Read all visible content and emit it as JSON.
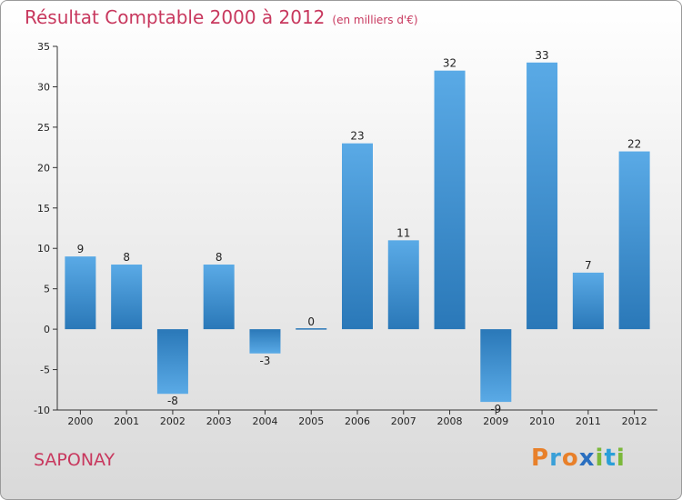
{
  "header": {
    "title": "Résultat Comptable 2000 à 2012",
    "unit": "(en milliers d'€)"
  },
  "commune": "SAPONAY",
  "logo": {
    "text": "Proxiti",
    "letters": [
      "P",
      "r",
      "o",
      "x",
      "i",
      "t",
      "i"
    ],
    "colors": [
      "#e8802a",
      "#3aa0d8",
      "#e8802a",
      "#2a6fc0",
      "#7bb83a",
      "#2a9fd8",
      "#7bb83a"
    ]
  },
  "colors": {
    "bar_light": "#5aaae6",
    "bar_dark": "#2a78b8",
    "title": "#c8385e"
  },
  "chart_data": {
    "type": "bar",
    "title": "Résultat Comptable 2000 à 2012",
    "subtitle": "(en milliers d'€)",
    "xlabel": "",
    "ylabel": "",
    "categories": [
      "2000",
      "2001",
      "2002",
      "2003",
      "2004",
      "2005",
      "2006",
      "2007",
      "2008",
      "2009",
      "2010",
      "2011",
      "2012"
    ],
    "values": [
      9,
      8,
      -8,
      8,
      -3,
      0,
      23,
      11,
      32,
      -9,
      33,
      7,
      22
    ],
    "value_labels": [
      "9",
      "8",
      "-8",
      "8",
      "-3",
      "0",
      "23",
      "11",
      "32",
      "-9",
      "33",
      "7",
      "22"
    ],
    "ylim": [
      -10,
      35
    ],
    "yticks": [
      -10,
      -5,
      0,
      5,
      10,
      15,
      20,
      25,
      30,
      35
    ],
    "ytick_labels": [
      "-10",
      "-5",
      "0",
      "5",
      "10",
      "15",
      "20",
      "25",
      "30",
      "35"
    ],
    "grid": false,
    "legend": "none"
  }
}
